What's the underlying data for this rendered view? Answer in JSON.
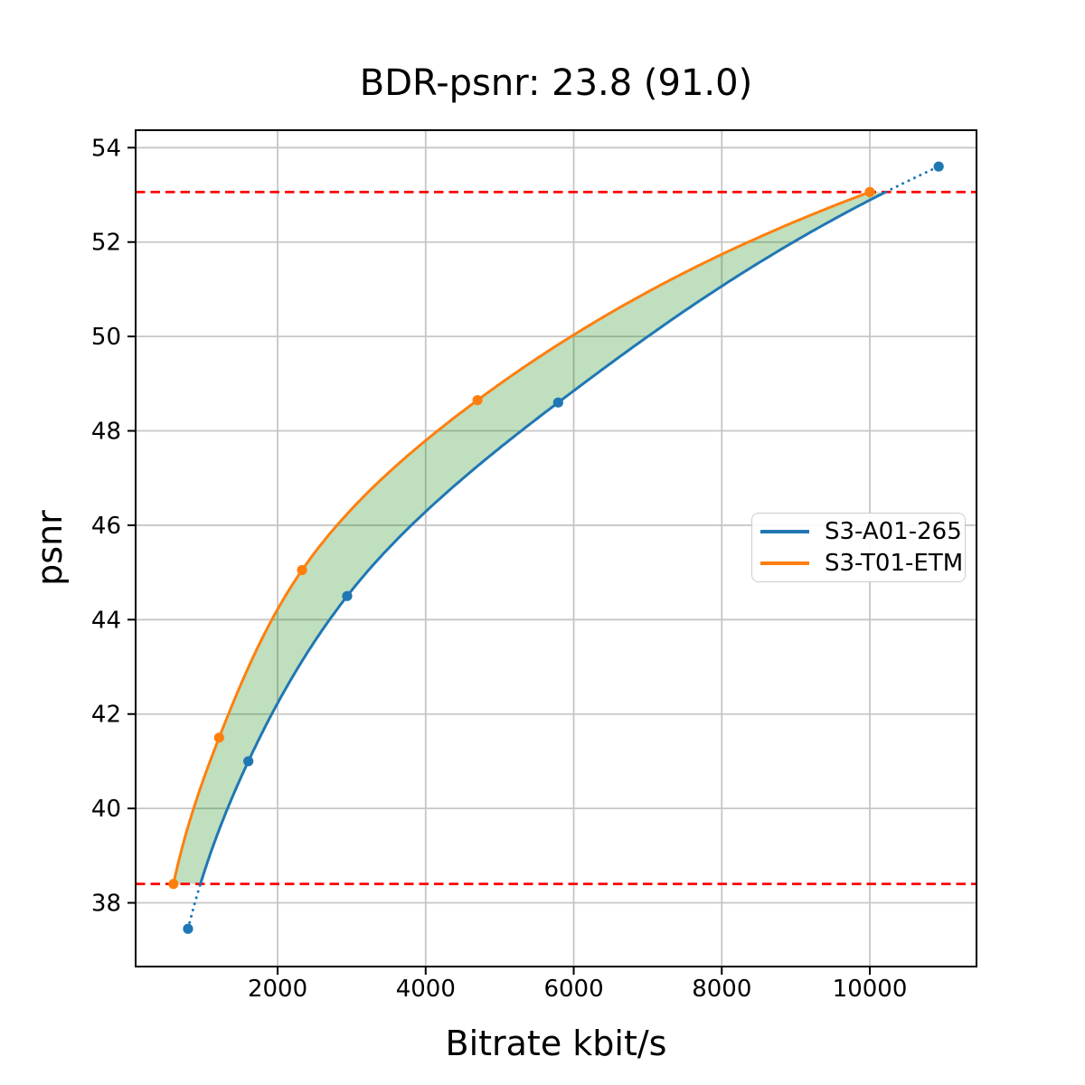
{
  "figure": {
    "background": "#ffffff"
  },
  "chart_data": {
    "type": "line",
    "title": "BDR-psnr: 23.8 (91.0)",
    "xlabel": "Bitrate kbit/s",
    "ylabel": "psnr",
    "xlim": [
      82,
      11441
    ],
    "ylim": [
      36.65,
      54.37
    ],
    "xticks": [
      2000,
      4000,
      6000,
      8000,
      10000
    ],
    "yticks": [
      38,
      40,
      42,
      44,
      46,
      48,
      50,
      52,
      54
    ],
    "grid": true,
    "grid_color": "#c6c6c6",
    "axis_color": "#000000",
    "interpolation": "pchip-log-x",
    "series": [
      {
        "name": "S3-A01-265",
        "color": "#1f77b4",
        "marker": "circle",
        "points": [
          [
            790,
            37.45
          ],
          [
            1605,
            41.0
          ],
          [
            2940,
            44.5
          ],
          [
            5790,
            48.6
          ],
          [
            10930,
            53.6
          ]
        ],
        "outside_band_style": "dotted"
      },
      {
        "name": "S3-T01-ETM",
        "color": "#ff7f0e",
        "marker": "circle",
        "points": [
          [
            593,
            38.4
          ],
          [
            1210,
            41.5
          ],
          [
            2330,
            45.05
          ],
          [
            4700,
            48.65
          ],
          [
            10000,
            53.06
          ]
        ],
        "outside_band_style": "solid"
      }
    ],
    "hlines": [
      {
        "y": 53.06,
        "color": "#ff0000",
        "style": "dashed"
      },
      {
        "y": 38.4,
        "color": "#ff0000",
        "style": "dashed"
      }
    ],
    "fill_between": {
      "y_min": 38.4,
      "y_max": 53.06,
      "color": "#008000",
      "opacity": 0.25
    },
    "legend": {
      "position": "right-center"
    }
  }
}
